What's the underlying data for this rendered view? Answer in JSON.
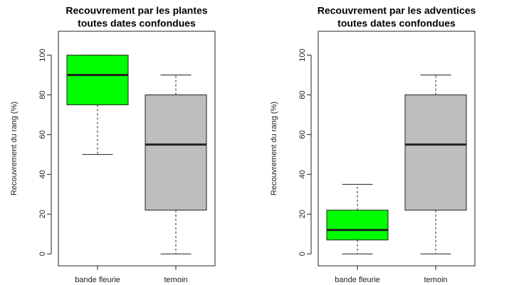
{
  "chart_data": [
    {
      "type": "boxplot",
      "title_lines": [
        "Recouvrement par les plantes",
        "toutes dates confondues"
      ],
      "y_label": "Recouvrement du rang (%)",
      "categories": [
        "bande fleurie",
        "temoin"
      ],
      "colors": [
        "#00ff00",
        "#bebebe"
      ],
      "boxes": [
        {
          "low": 50,
          "q1": 75,
          "median": 90,
          "q3": 100,
          "high": 100
        },
        {
          "low": 0,
          "q1": 22,
          "median": 55,
          "q3": 80,
          "high": 90
        }
      ],
      "ylim": [
        -6,
        112
      ],
      "yticks": [
        0,
        20,
        40,
        60,
        80,
        100
      ]
    },
    {
      "type": "boxplot",
      "title_lines": [
        "Recouvrement par les adventices",
        "toutes dates confondues"
      ],
      "y_label": "Recouvrement du rang (%)",
      "categories": [
        "bande fleurie",
        "temoin"
      ],
      "colors": [
        "#00ff00",
        "#bebebe"
      ],
      "boxes": [
        {
          "low": 0,
          "q1": 7,
          "median": 12,
          "q3": 22,
          "high": 35
        },
        {
          "low": 0,
          "q1": 22,
          "median": 55,
          "q3": 80,
          "high": 90
        }
      ],
      "ylim": [
        -6,
        112
      ],
      "yticks": [
        0,
        20,
        40,
        60,
        80,
        100
      ]
    }
  ]
}
